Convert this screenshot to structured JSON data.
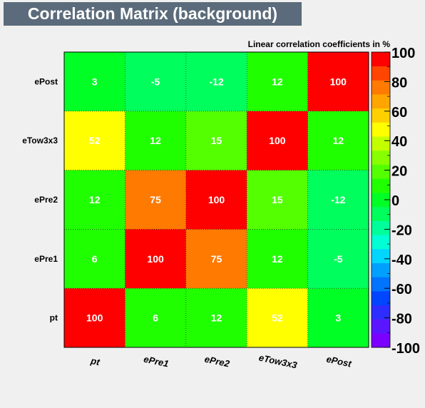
{
  "title": "Correlation Matrix (background)",
  "chart_data": {
    "type": "heatmap",
    "title": "Correlation Matrix (background)",
    "subtitle": "Linear correlation coefficients in %",
    "x_labels": [
      "pt",
      "ePre1",
      "ePre2",
      "eTow3x3",
      "ePost"
    ],
    "y_labels": [
      "pt",
      "ePre1",
      "ePre2",
      "eTow3x3",
      "ePost"
    ],
    "values": [
      [
        100,
        6,
        12,
        52,
        3
      ],
      [
        6,
        100,
        75,
        12,
        -5
      ],
      [
        12,
        75,
        100,
        15,
        -12
      ],
      [
        52,
        12,
        15,
        100,
        12
      ],
      [
        3,
        -5,
        -12,
        12,
        100
      ]
    ],
    "zlim": [
      -100,
      100
    ],
    "colorbar_ticks": [
      100,
      80,
      60,
      40,
      20,
      0,
      -20,
      -40,
      -60,
      -80,
      -100
    ],
    "palette": [
      "#7a00ff",
      "#5a17ff",
      "#2d2dff",
      "#0045ff",
      "#0073ff",
      "#00a0ff",
      "#00d6ff",
      "#00ffd4",
      "#00ff9a",
      "#00ff5c",
      "#00ff24",
      "#20ff00",
      "#53ff00",
      "#88ff00",
      "#c4ff00",
      "#ffff00",
      "#ffd000",
      "#ffa500",
      "#ff7a00",
      "#ff4500",
      "#ff0000"
    ]
  }
}
